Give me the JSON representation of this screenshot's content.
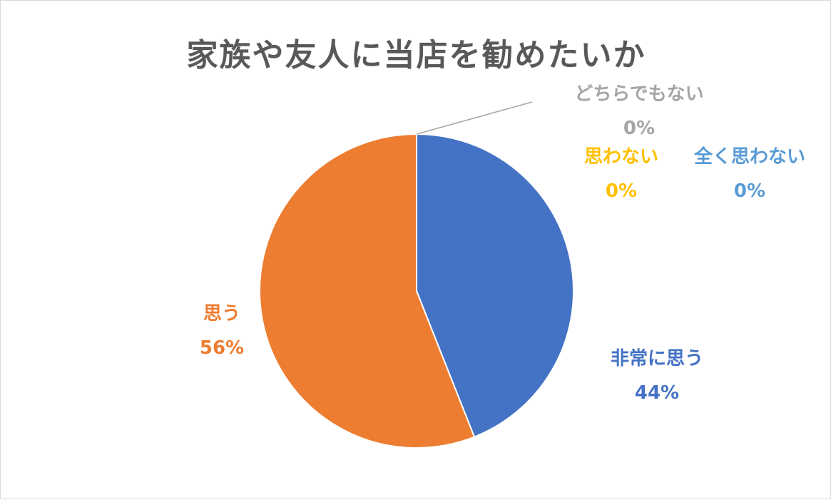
{
  "chart_data": {
    "type": "pie",
    "title": "家族や友人に当店を勧めたいか",
    "slices": [
      {
        "label": "非常に思う",
        "value": 44,
        "pct_label": "44%",
        "color": "#4472C4"
      },
      {
        "label": "思う",
        "value": 56,
        "pct_label": "56%",
        "color": "#ED7D31"
      },
      {
        "label": "どちらでもない",
        "value": 0,
        "pct_label": "0%",
        "color": "#A5A5A5"
      },
      {
        "label": "思わない",
        "value": 0,
        "pct_label": "0%",
        "color": "#FFC000"
      },
      {
        "label": "全く思わない",
        "value": 0,
        "pct_label": "0%",
        "color": "#5B9BD5"
      }
    ],
    "legend": "none"
  }
}
